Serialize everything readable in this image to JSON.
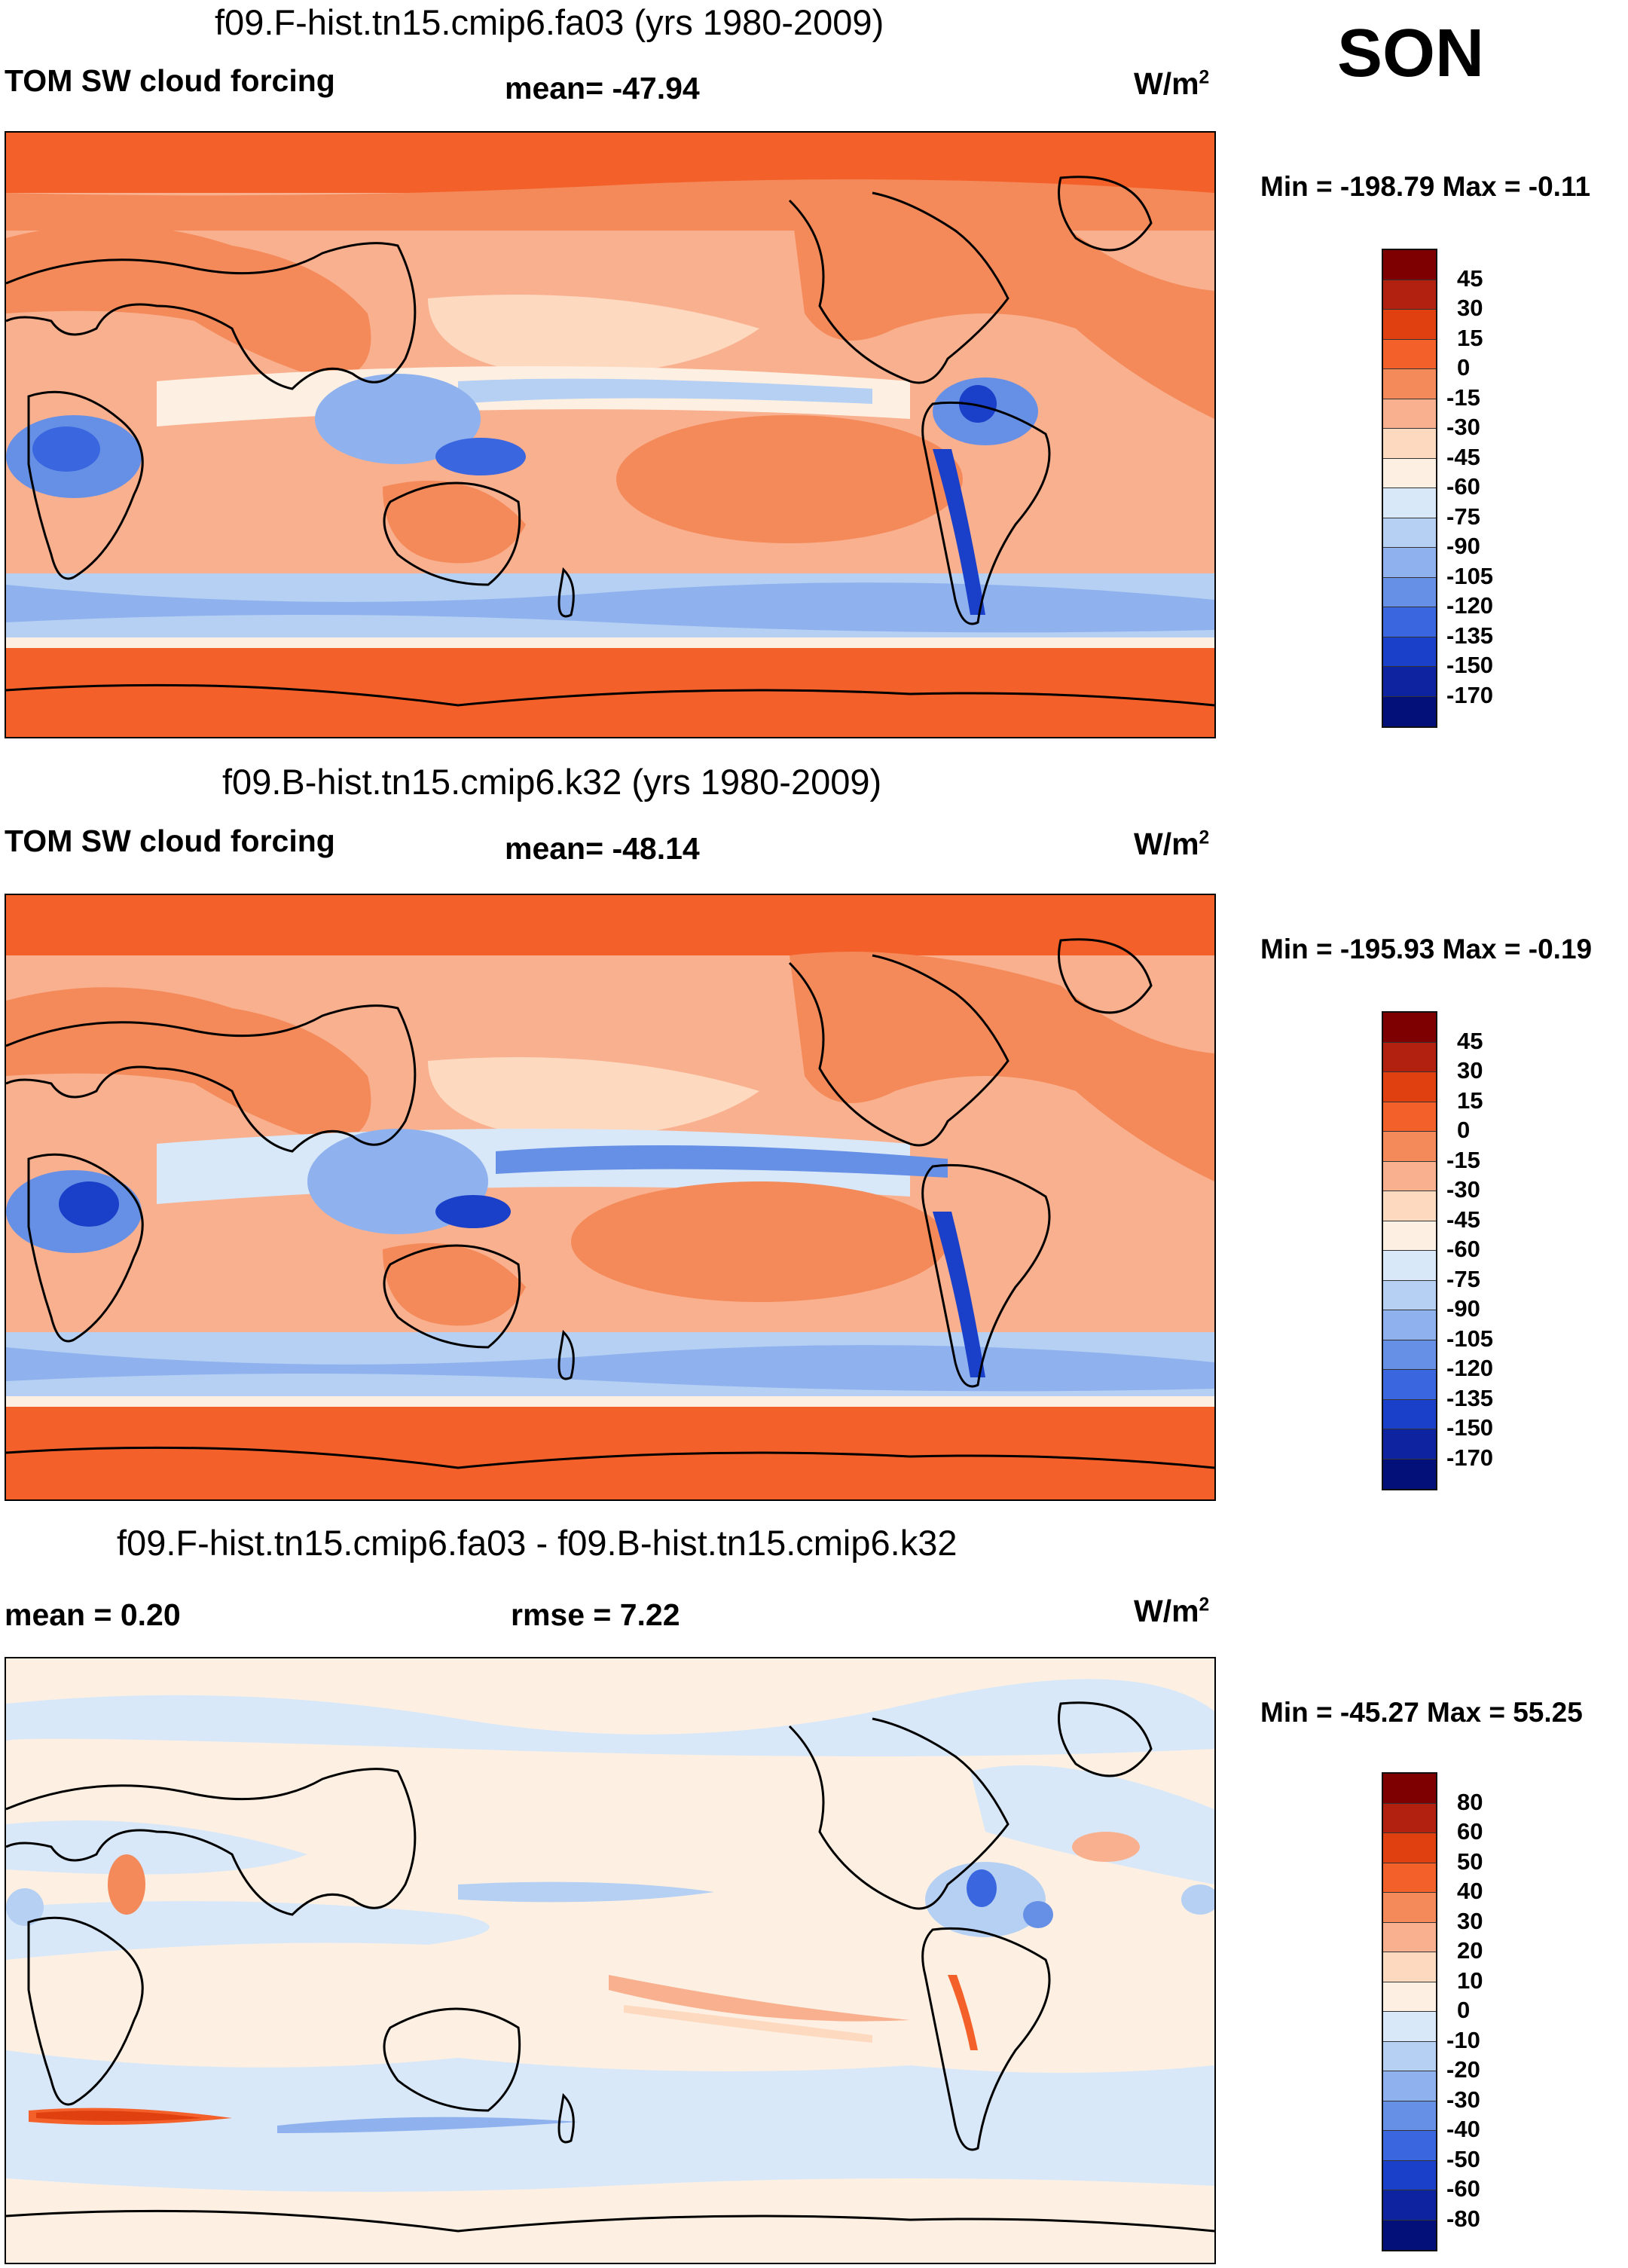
{
  "season": "SON",
  "panels": [
    {
      "title": "f09.F-hist.tn15.cmip6.fa03 (yrs 1980-2009)",
      "left_label": "TOM SW cloud forcing",
      "center_label": "mean= -47.94",
      "units_label": "W/m",
      "units_sup": "2",
      "minmax": "Min = -198.79 Max =  -0.11",
      "colorbar": {
        "colors": [
          "#7f0000",
          "#b2200f",
          "#e0400f",
          "#f4602a",
          "#f48a5a",
          "#f9b08f",
          "#fdd9c0",
          "#fdf0e2",
          "#d8e8f8",
          "#b5d0f3",
          "#8fb2ee",
          "#6690e6",
          "#3a66e0",
          "#1a3fc8",
          "#0e23a0",
          "#03107a"
        ],
        "ticks": [
          "45",
          "30",
          "15",
          "0",
          "-15",
          "-30",
          "-45",
          "-60",
          "-75",
          "-90",
          "-105",
          "-120",
          "-135",
          "-150",
          "-170"
        ]
      }
    },
    {
      "title": "f09.B-hist.tn15.cmip6.k32 (yrs 1980-2009)",
      "left_label": "TOM SW cloud forcing",
      "center_label": "mean= -48.14",
      "units_label": "W/m",
      "units_sup": "2",
      "minmax": "Min = -195.93 Max =  -0.19",
      "colorbar": {
        "colors": [
          "#7f0000",
          "#b2200f",
          "#e0400f",
          "#f4602a",
          "#f48a5a",
          "#f9b08f",
          "#fdd9c0",
          "#fdf0e2",
          "#d8e8f8",
          "#b5d0f3",
          "#8fb2ee",
          "#6690e6",
          "#3a66e0",
          "#1a3fc8",
          "#0e23a0",
          "#03107a"
        ],
        "ticks": [
          "45",
          "30",
          "15",
          "0",
          "-15",
          "-30",
          "-45",
          "-60",
          "-75",
          "-90",
          "-105",
          "-120",
          "-135",
          "-150",
          "-170"
        ]
      }
    },
    {
      "title": "f09.F-hist.tn15.cmip6.fa03 - f09.B-hist.tn15.cmip6.k32",
      "left_label": "mean =   0.20",
      "center_label": "rmse =   7.22",
      "units_label": "W/m",
      "units_sup": "2",
      "minmax": "Min = -45.27 Max =  55.25",
      "colorbar": {
        "colors": [
          "#7f0000",
          "#b2200f",
          "#e0400f",
          "#f4602a",
          "#f48a5a",
          "#f9b08f",
          "#fdd9c0",
          "#fdf0e2",
          "#d8e8f8",
          "#b5d0f3",
          "#8fb2ee",
          "#6690e6",
          "#3a66e0",
          "#1a3fc8",
          "#0e23a0",
          "#03107a"
        ],
        "ticks": [
          "80",
          "60",
          "50",
          "40",
          "30",
          "20",
          "10",
          "0",
          "-10",
          "-20",
          "-30",
          "-40",
          "-50",
          "-60",
          "-80"
        ]
      }
    }
  ]
}
